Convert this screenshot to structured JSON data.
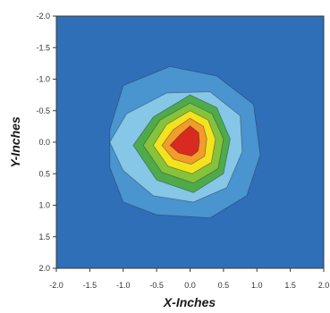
{
  "chart_data": {
    "type": "contour",
    "title": "",
    "xlabel": "X-Inches",
    "ylabel": "Y-Inches",
    "xlim": [
      -2.0,
      2.0
    ],
    "ylim": [
      -2.0,
      2.0
    ],
    "y_inverted": true,
    "x_ticks": [
      "-2.0",
      "-1.5",
      "-1.0",
      "-0.5",
      "0.0",
      "0.5",
      "1.0",
      "1.5",
      "2.0"
    ],
    "y_ticks": [
      "-2.0",
      "-1.5",
      "-1.0",
      "-0.5",
      "0.0",
      "0.5",
      "1.0",
      "1.5",
      "2.0"
    ],
    "grid": false,
    "background_color": "#2f6fb8",
    "levels": [
      {
        "level": 1,
        "color": "#4a94cf",
        "points": [
          [
            -1.2,
            -0.2
          ],
          [
            -1.0,
            -0.9
          ],
          [
            -0.3,
            -1.2
          ],
          [
            0.4,
            -1.05
          ],
          [
            0.95,
            -0.6
          ],
          [
            1.05,
            0.2
          ],
          [
            0.85,
            0.85
          ],
          [
            0.3,
            1.2
          ],
          [
            -0.5,
            1.15
          ],
          [
            -1.0,
            0.95
          ],
          [
            -1.2,
            0.4
          ]
        ]
      },
      {
        "level": 2,
        "color": "#86c6e6",
        "points": [
          [
            -1.2,
            0.0
          ],
          [
            -0.95,
            -0.45
          ],
          [
            -0.35,
            -0.78
          ],
          [
            0.3,
            -0.8
          ],
          [
            0.75,
            -0.42
          ],
          [
            0.78,
            0.15
          ],
          [
            0.55,
            0.72
          ],
          [
            0.05,
            0.95
          ],
          [
            -0.55,
            0.85
          ],
          [
            -1.0,
            0.45
          ]
        ]
      },
      {
        "level": 3,
        "color": "#4faa4a",
        "points": [
          [
            -0.85,
            0.05
          ],
          [
            -0.55,
            -0.4
          ],
          [
            0.0,
            -0.75
          ],
          [
            0.4,
            -0.55
          ],
          [
            0.6,
            -0.05
          ],
          [
            0.5,
            0.5
          ],
          [
            0.05,
            0.8
          ],
          [
            -0.5,
            0.6
          ]
        ]
      },
      {
        "level": 4,
        "color": "#86c23a",
        "points": [
          [
            -0.7,
            0.05
          ],
          [
            -0.45,
            -0.35
          ],
          [
            0.0,
            -0.62
          ],
          [
            0.33,
            -0.45
          ],
          [
            0.5,
            -0.05
          ],
          [
            0.42,
            0.42
          ],
          [
            0.05,
            0.65
          ],
          [
            -0.42,
            0.48
          ]
        ]
      },
      {
        "level": 5,
        "color": "#f3e21e",
        "points": [
          [
            -0.55,
            0.05
          ],
          [
            -0.35,
            -0.28
          ],
          [
            0.0,
            -0.5
          ],
          [
            0.27,
            -0.35
          ],
          [
            0.38,
            -0.05
          ],
          [
            0.32,
            0.32
          ],
          [
            0.03,
            0.5
          ],
          [
            -0.33,
            0.38
          ]
        ]
      },
      {
        "level": 6,
        "color": "#f39c2a",
        "points": [
          [
            -0.42,
            0.05
          ],
          [
            -0.25,
            -0.2
          ],
          [
            0.0,
            -0.38
          ],
          [
            0.2,
            -0.25
          ],
          [
            0.25,
            -0.05
          ],
          [
            0.22,
            0.22
          ],
          [
            0.02,
            0.35
          ],
          [
            -0.25,
            0.27
          ]
        ]
      },
      {
        "level": 7,
        "color": "#d92a1f",
        "points": [
          [
            -0.3,
            0.05
          ],
          [
            -0.15,
            -0.12
          ],
          [
            0.0,
            -0.26
          ],
          [
            0.13,
            -0.15
          ],
          [
            0.14,
            0.0
          ],
          [
            0.12,
            0.14
          ],
          [
            0.02,
            0.22
          ],
          [
            -0.17,
            0.17
          ]
        ]
      }
    ]
  }
}
